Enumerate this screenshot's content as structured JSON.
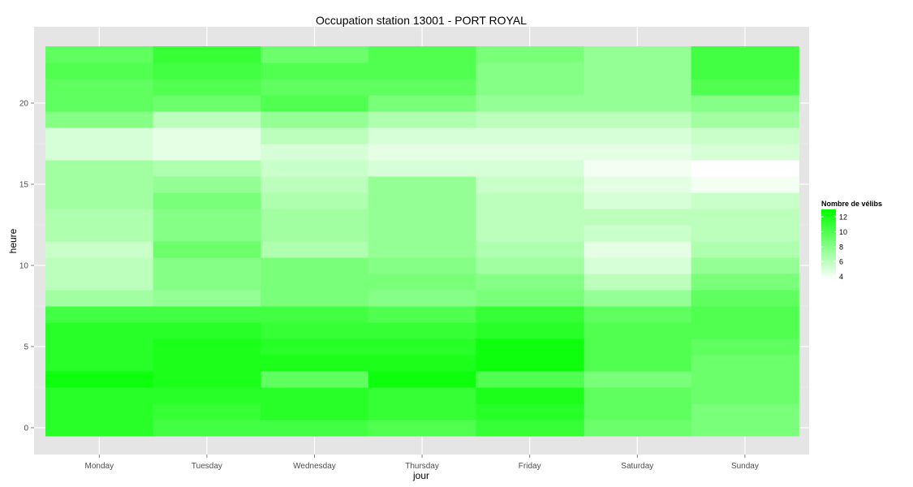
{
  "chart_data": {
    "type": "heatmap",
    "title": "Occupation station 13001 - PORT ROYAL",
    "xlabel": "jour",
    "ylabel": "heure",
    "x_categories": [
      "Monday",
      "Tuesday",
      "Wednesday",
      "Thursday",
      "Friday",
      "Saturday",
      "Sunday"
    ],
    "y_hours": [
      0,
      1,
      2,
      3,
      4,
      5,
      6,
      7,
      8,
      9,
      10,
      11,
      12,
      13,
      14,
      15,
      16,
      17,
      18,
      19,
      20,
      21,
      22,
      23
    ],
    "y_ticks": [
      0,
      5,
      10,
      15,
      20
    ],
    "y_tick_labels": [
      "0",
      "5",
      "10",
      "15",
      "20"
    ],
    "ylim": [
      -0.5,
      23.5
    ],
    "values_by_day": [
      [
        11.5,
        11.5,
        11.5,
        12.5,
        11.5,
        11.5,
        11.5,
        10.5,
        7.0,
        6.0,
        6.0,
        5.5,
        6.5,
        6.5,
        7.0,
        7.0,
        7.0,
        5.0,
        5.0,
        8.0,
        9.5,
        9.5,
        10.0,
        9.5
      ],
      [
        10.5,
        11.0,
        11.5,
        12.0,
        12.0,
        12.0,
        11.5,
        10.5,
        7.5,
        8.0,
        8.0,
        9.0,
        8.0,
        8.0,
        8.5,
        7.5,
        6.5,
        4.5,
        4.5,
        6.0,
        9.0,
        10.0,
        10.5,
        11.0
      ],
      [
        10.5,
        11.5,
        11.5,
        9.5,
        12.0,
        11.5,
        11.0,
        10.5,
        8.5,
        8.5,
        8.5,
        6.5,
        7.0,
        7.0,
        6.5,
        6.0,
        5.5,
        5.0,
        6.0,
        7.5,
        10.0,
        9.5,
        10.0,
        9.0
      ],
      [
        10.0,
        11.0,
        11.0,
        12.5,
        12.0,
        11.5,
        11.0,
        10.0,
        8.0,
        8.5,
        8.0,
        7.5,
        7.5,
        7.5,
        7.5,
        7.5,
        5.0,
        4.5,
        5.0,
        6.5,
        8.5,
        9.5,
        10.0,
        10.0
      ],
      [
        11.0,
        11.5,
        12.0,
        10.0,
        12.5,
        12.5,
        11.5,
        11.0,
        8.5,
        8.0,
        7.0,
        6.5,
        6.0,
        6.0,
        6.0,
        5.5,
        5.0,
        4.5,
        5.0,
        6.0,
        7.5,
        8.0,
        8.0,
        8.5
      ],
      [
        9.0,
        9.5,
        9.5,
        8.5,
        10.0,
        10.0,
        10.0,
        9.5,
        7.5,
        6.0,
        5.0,
        4.5,
        5.5,
        6.0,
        5.0,
        4.5,
        4.0,
        4.5,
        5.0,
        6.0,
        7.5,
        7.5,
        7.5,
        7.5
      ],
      [
        8.5,
        8.5,
        9.0,
        9.0,
        9.0,
        9.5,
        10.0,
        10.0,
        9.5,
        8.5,
        7.5,
        6.5,
        6.0,
        6.0,
        5.5,
        4.0,
        3.5,
        5.0,
        5.5,
        7.0,
        8.0,
        10.0,
        10.5,
        10.5
      ]
    ],
    "legend": {
      "title": "Nombre de vélibs",
      "labels": [
        "12",
        "10",
        "8",
        "6",
        "4"
      ],
      "ticks": [
        12,
        10,
        8,
        6,
        4
      ],
      "low_color": "#ffffff",
      "high_color": "#00ff00",
      "range": [
        3.5,
        13.0
      ],
      "placement": "right"
    },
    "grid": true,
    "panel_background": "#e5e5e5",
    "grid_color": "#ffffff"
  }
}
